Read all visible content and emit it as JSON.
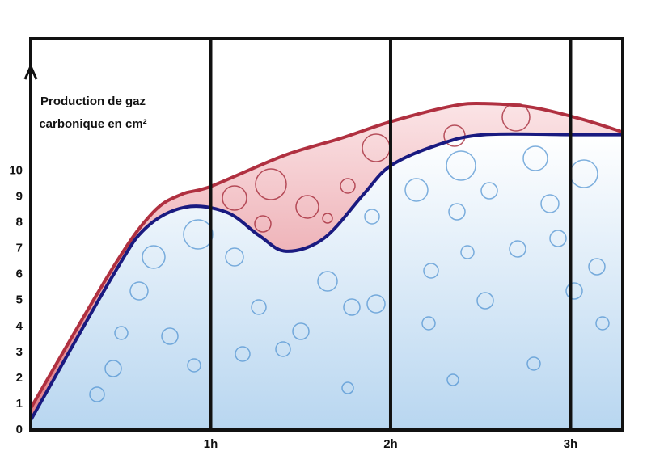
{
  "chart_data": {
    "type": "line",
    "ylabel": "Production de gaz carbonique en cm²",
    "xlim": [
      0,
      3.29
    ],
    "ylim": [
      0,
      15.1
    ],
    "xticks": [
      {
        "value": 1,
        "label": "1h"
      },
      {
        "value": 2,
        "label": "2h"
      },
      {
        "value": 3,
        "label": "3h"
      }
    ],
    "yticks": [
      0,
      1,
      2,
      3,
      4,
      5,
      6,
      7,
      8,
      9,
      10
    ],
    "series": [
      {
        "color": "#b03040",
        "x": [
          0,
          0.46,
          0.68,
          0.84,
          1,
          1.41,
          1.72,
          2,
          2.34,
          2.52,
          2.79,
          3.06,
          3.29
        ],
        "values": [
          0.84,
          6.3,
          8.4,
          9.1,
          9.4,
          10.6,
          11.25,
          11.9,
          12.5,
          12.6,
          12.45,
          12.0,
          11.5
        ]
      },
      {
        "color": "#1a1a80",
        "x": [
          0,
          0.46,
          0.64,
          0.86,
          1.09,
          1.27,
          1.42,
          1.63,
          1.85,
          2,
          2.26,
          2.52,
          3,
          3.29
        ],
        "values": [
          0.38,
          6.0,
          7.8,
          8.6,
          8.4,
          7.5,
          6.9,
          7.4,
          9.1,
          10.2,
          11.0,
          11.4,
          11.4,
          11.4
        ]
      }
    ]
  }
}
